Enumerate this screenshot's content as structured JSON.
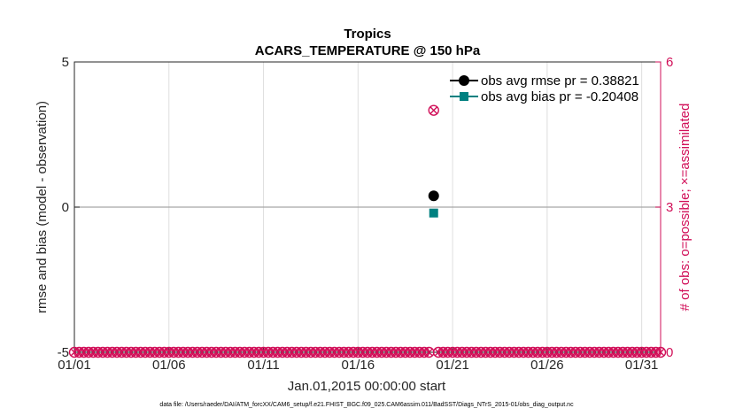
{
  "chart_data": {
    "type": "line",
    "title": "Tropics",
    "subtitle": "ACARS_TEMPERATURE @ 150 hPa",
    "xlabel": "Jan.01,2015 00:00:00 start",
    "ylabel_left": "rmse and bias (model - observation)",
    "ylabel_right": "# of obs: o=possible; ×=assimilated",
    "footnote": "data file: /Users/raeder/DAI/ATM_forcXX/CAM6_setup/f.e21.FHIST_BGC.f09_025.CAM6assim.011/BadSST/Diags_NTrS_2015-01/obs_diag_output.nc",
    "x_axis": {
      "min": 1,
      "max": 32,
      "ticks": [
        1,
        6,
        11,
        16,
        21,
        26,
        31
      ],
      "tick_labels": [
        "01/01",
        "01/06",
        "01/11",
        "01/16",
        "01/21",
        "01/26",
        "01/31"
      ],
      "grid": true
    },
    "y_left": {
      "min": -5,
      "max": 5,
      "ticks": [
        -5,
        0,
        5
      ],
      "tick_labels": [
        "-5",
        "0",
        "5"
      ]
    },
    "y_right": {
      "min": 0,
      "max": 6,
      "ticks": [
        0,
        3,
        6
      ],
      "tick_labels": [
        "0",
        "3",
        "6"
      ]
    },
    "legend_position": "top-right",
    "series": [
      {
        "name": "obs avg rmse pr = 0.38821",
        "axis": "left",
        "color": "#000000",
        "marker": "circle",
        "x": [
          20
        ],
        "y": [
          0.38821
        ]
      },
      {
        "name": "obs avg bias pr = -0.20408",
        "axis": "left",
        "color": "#008080",
        "marker": "square",
        "x": [
          20
        ],
        "y": [
          -0.20408
        ]
      }
    ],
    "obs_counts": {
      "axis": "right",
      "color": "#d10f58",
      "x": [
        1.0,
        1.25,
        1.5,
        1.75,
        2.0,
        2.25,
        2.5,
        2.75,
        3.0,
        3.25,
        3.5,
        3.75,
        4.0,
        4.25,
        4.5,
        4.75,
        5.0,
        5.25,
        5.5,
        5.75,
        6.0,
        6.25,
        6.5,
        6.75,
        7.0,
        7.25,
        7.5,
        7.75,
        8.0,
        8.25,
        8.5,
        8.75,
        9.0,
        9.25,
        9.5,
        9.75,
        10.0,
        10.25,
        10.5,
        10.75,
        11.0,
        11.25,
        11.5,
        11.75,
        12.0,
        12.25,
        12.5,
        12.75,
        13.0,
        13.25,
        13.5,
        13.75,
        14.0,
        14.25,
        14.5,
        14.75,
        15.0,
        15.25,
        15.5,
        15.75,
        16.0,
        16.25,
        16.5,
        16.75,
        17.0,
        17.25,
        17.5,
        17.75,
        18.0,
        18.25,
        18.5,
        18.75,
        19.0,
        19.25,
        19.5,
        19.75,
        20.0,
        20.25,
        20.5,
        20.75,
        21.0,
        21.25,
        21.5,
        21.75,
        22.0,
        22.25,
        22.5,
        22.75,
        23.0,
        23.25,
        23.5,
        23.75,
        24.0,
        24.25,
        24.5,
        24.75,
        25.0,
        25.25,
        25.5,
        25.75,
        26.0,
        26.25,
        26.5,
        26.75,
        27.0,
        27.25,
        27.5,
        27.75,
        28.0,
        28.25,
        28.5,
        28.75,
        29.0,
        29.25,
        29.5,
        29.75,
        30.0,
        30.25,
        30.5,
        30.75,
        31.0,
        31.25,
        31.5,
        31.75,
        32.0
      ],
      "possible": [
        0,
        0,
        0,
        0,
        0,
        0,
        0,
        0,
        0,
        0,
        0,
        0,
        0,
        0,
        0,
        0,
        0,
        0,
        0,
        0,
        0,
        0,
        0,
        0,
        0,
        0,
        0,
        0,
        0,
        0,
        0,
        0,
        0,
        0,
        0,
        0,
        0,
        0,
        0,
        0,
        0,
        0,
        0,
        0,
        0,
        0,
        0,
        0,
        0,
        0,
        0,
        0,
        0,
        0,
        0,
        0,
        0,
        0,
        0,
        0,
        0,
        0,
        0,
        0,
        0,
        0,
        0,
        0,
        0,
        0,
        0,
        0,
        0,
        0,
        0,
        0,
        5,
        0,
        0,
        0,
        0,
        0,
        0,
        0,
        0,
        0,
        0,
        0,
        0,
        0,
        0,
        0,
        0,
        0,
        0,
        0,
        0,
        0,
        0,
        0,
        0,
        0,
        0,
        0,
        0,
        0,
        0,
        0,
        0,
        0,
        0,
        0,
        0,
        0,
        0,
        0,
        0,
        0,
        0,
        0,
        0,
        0,
        0,
        0,
        0
      ],
      "assimilated": [
        0,
        0,
        0,
        0,
        0,
        0,
        0,
        0,
        0,
        0,
        0,
        0,
        0,
        0,
        0,
        0,
        0,
        0,
        0,
        0,
        0,
        0,
        0,
        0,
        0,
        0,
        0,
        0,
        0,
        0,
        0,
        0,
        0,
        0,
        0,
        0,
        0,
        0,
        0,
        0,
        0,
        0,
        0,
        0,
        0,
        0,
        0,
        0,
        0,
        0,
        0,
        0,
        0,
        0,
        0,
        0,
        0,
        0,
        0,
        0,
        0,
        0,
        0,
        0,
        0,
        0,
        0,
        0,
        0,
        0,
        0,
        0,
        0,
        0,
        0,
        0,
        5,
        0,
        0,
        0,
        0,
        0,
        0,
        0,
        0,
        0,
        0,
        0,
        0,
        0,
        0,
        0,
        0,
        0,
        0,
        0,
        0,
        0,
        0,
        0,
        0,
        0,
        0,
        0,
        0,
        0,
        0,
        0,
        0,
        0,
        0,
        0,
        0,
        0,
        0,
        0,
        0,
        0,
        0,
        0,
        0,
        0,
        0,
        0,
        0
      ]
    },
    "zero_line": 0
  }
}
